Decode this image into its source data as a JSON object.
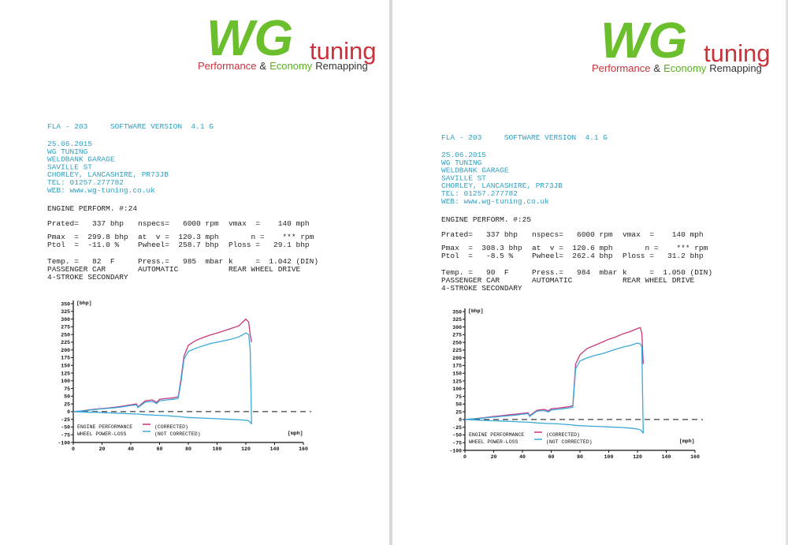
{
  "sheets": [
    {
      "logo": {
        "wg": "WG",
        "tuning": "tuning",
        "performance": "Performance",
        "amp": "&",
        "economy": "Economy",
        "remapping": "Remapping"
      },
      "software": "FLA - 203     SOFTWARE VERSION  4.1 G",
      "address": [
        "25.06.2015",
        "WG TUNING",
        "WELDBANK GARAGE",
        "SAVILLE ST",
        "CHORLEY, LANCASHIRE, PR73JB",
        "TEL: 01257.277782",
        "WEB: www.wg-tuning.co.uk"
      ],
      "test": "ENGINE PERFORM. #:24",
      "rows": [
        [
          "Prated=   337 bhp",
          "nspecs=   6000 rpm",
          "vmax  =    140 mph"
        ],
        [
          "Pmax  =  299.8 bhp",
          "at  v =  120.3 mph",
          "     n =    *** rpm"
        ],
        [
          "Ptol  =  -11.0 %",
          "Pwheel=  258.7 bhp",
          "Ploss =   29.1 bhp"
        ],
        [
          "Temp. =   82  F",
          "Press.=   985  mbar",
          "k     =  1.042 (DIN)"
        ],
        [
          "PASSENGER CAR",
          "AUTOMATIC",
          "REAR WHEEL DRIVE"
        ],
        [
          "4-STROKE SECONDARY"
        ]
      ],
      "chart": {
        "type": "line",
        "y_label": "[bhp]",
        "x_label": "[mph]",
        "x": [
          0,
          5,
          10,
          15,
          20,
          25,
          30,
          35,
          40,
          44,
          45,
          50,
          55,
          58,
          60,
          65,
          70,
          73,
          75,
          77,
          80,
          85,
          90,
          95,
          100,
          105,
          110,
          115,
          120,
          122,
          123,
          124
        ],
        "series": [
          {
            "name": "(CORRECTED)",
            "legend_label": "ENGINE PERFORMANCE",
            "color": "#c8387a",
            "values": [
              0,
              2,
              5,
              8,
              10,
              12,
              15,
              18,
              22,
              25,
              15,
              35,
              38,
              30,
              40,
              43,
              45,
              48,
              110,
              180,
              215,
              230,
              240,
              248,
              255,
              262,
              270,
              278,
              300,
              290,
              250,
              225
            ]
          },
          {
            "name": "(NOT CORRECTED)",
            "legend_label": "WHEEL POWER-LOSS",
            "color": "#3aa8d8",
            "values": [
              0,
              2,
              4,
              7,
              9,
              11,
              13,
              16,
              20,
              22,
              13,
              31,
              33,
              26,
              35,
              38,
              40,
              43,
              100,
              170,
              195,
              205,
              213,
              220,
              225,
              230,
              235,
              242,
              255,
              250,
              200,
              -40
            ]
          },
          {
            "color": "#3aa8d8",
            "values": [
              0,
              -1,
              -2,
              -2,
              -3,
              -4,
              -5,
              -6,
              -7,
              -8,
              -8,
              -10,
              -11,
              -12,
              -12,
              -13,
              -15,
              -16,
              -17,
              -18,
              -19,
              -20,
              -21,
              -22,
              -23,
              -24,
              -25,
              -26,
              -28,
              -30,
              -35,
              -40
            ]
          }
        ],
        "xlim": [
          0,
          160
        ],
        "xticks": [
          0,
          20,
          40,
          60,
          80,
          100,
          120,
          140,
          160
        ],
        "ylim": [
          -100,
          350
        ],
        "yticks": [
          350,
          325,
          300,
          275,
          250,
          225,
          200,
          175,
          150,
          125,
          100,
          75,
          50,
          25,
          0,
          -25,
          -50,
          -75,
          -100
        ]
      }
    },
    {
      "logo": {
        "wg": "WG",
        "tuning": "tuning",
        "performance": "Performance",
        "amp": "&",
        "economy": "Economy",
        "remapping": "Remapping"
      },
      "software": "FLA - 203     SOFTWARE VERSION  4.1 G",
      "address": [
        "25.06.2015",
        "WG TUNING",
        "WELDBANK GARAGE",
        "SAVILLE ST",
        "CHORLEY, LANCASHIRE, PR73JB",
        "TEL: 01257.277782",
        "WEB: www.wg-tuning.co.uk"
      ],
      "test": "ENGINE PERFORM. #:25",
      "rows": [
        [
          "Prated=   337 bhp",
          "nspecs=   6000 rpm",
          "vmax  =    140 mph"
        ],
        [
          "Pmax  =  308.3 bhp",
          "at  v =  120.6 mph",
          "     n =    *** rpm"
        ],
        [
          "Ptol  =   -8.5 %",
          "Pwheel=  262.4 bhp",
          "Ploss =   31.2 bhp"
        ],
        [
          "Temp. =   90  F",
          "Press.=   984  mbar",
          "k     =  1.050 (DIN)"
        ],
        [
          "PASSENGER CAR",
          "AUTOMATIC",
          "REAR WHEEL DRIVE"
        ],
        [
          "4-STROKE SECONDARY"
        ]
      ],
      "chart": {
        "type": "line",
        "y_label": "[bhp]",
        "x_label": "[mph]",
        "x": [
          0,
          5,
          10,
          15,
          20,
          25,
          30,
          35,
          40,
          44,
          45,
          50,
          55,
          58,
          60,
          65,
          70,
          73,
          75,
          77,
          80,
          85,
          90,
          95,
          100,
          105,
          110,
          115,
          120,
          122,
          123,
          124
        ],
        "series": [
          {
            "name": "(CORRECTED)",
            "legend_label": "ENGINE PERFORMANCE",
            "color": "#c8387a",
            "values": [
              0,
              2,
              4,
              7,
              10,
              12,
              15,
              17,
              20,
              22,
              12,
              30,
              33,
              28,
              35,
              37,
              40,
              42,
              45,
              180,
              210,
              230,
              240,
              250,
              260,
              268,
              278,
              285,
              295,
              298,
              280,
              180
            ]
          },
          {
            "name": "(NOT CORRECTED)",
            "legend_label": "WHEEL POWER-LOSS",
            "color": "#3aa8d8",
            "values": [
              0,
              2,
              3,
              6,
              8,
              10,
              12,
              14,
              17,
              19,
              10,
              27,
              29,
              24,
              31,
              33,
              36,
              38,
              40,
              165,
              190,
              200,
              207,
              213,
              220,
              228,
              235,
              240,
              248,
              245,
              235,
              -45
            ]
          },
          {
            "color": "#3aa8d8",
            "values": [
              0,
              -1,
              -2,
              -3,
              -4,
              -5,
              -6,
              -7,
              -8,
              -9,
              -9,
              -11,
              -12,
              -13,
              -13,
              -14,
              -16,
              -17,
              -18,
              -19,
              -20,
              -21,
              -22,
              -23,
              -24,
              -25,
              -26,
              -28,
              -31,
              -33,
              -38,
              -45
            ]
          }
        ],
        "xlim": [
          0,
          160
        ],
        "xticks": [
          0,
          20,
          40,
          60,
          80,
          100,
          120,
          140,
          160
        ],
        "ylim": [
          -100,
          350
        ],
        "yticks": [
          350,
          325,
          300,
          275,
          250,
          225,
          200,
          175,
          150,
          125,
          100,
          75,
          50,
          25,
          0,
          -25,
          -50,
          -75,
          -100
        ]
      }
    }
  ]
}
